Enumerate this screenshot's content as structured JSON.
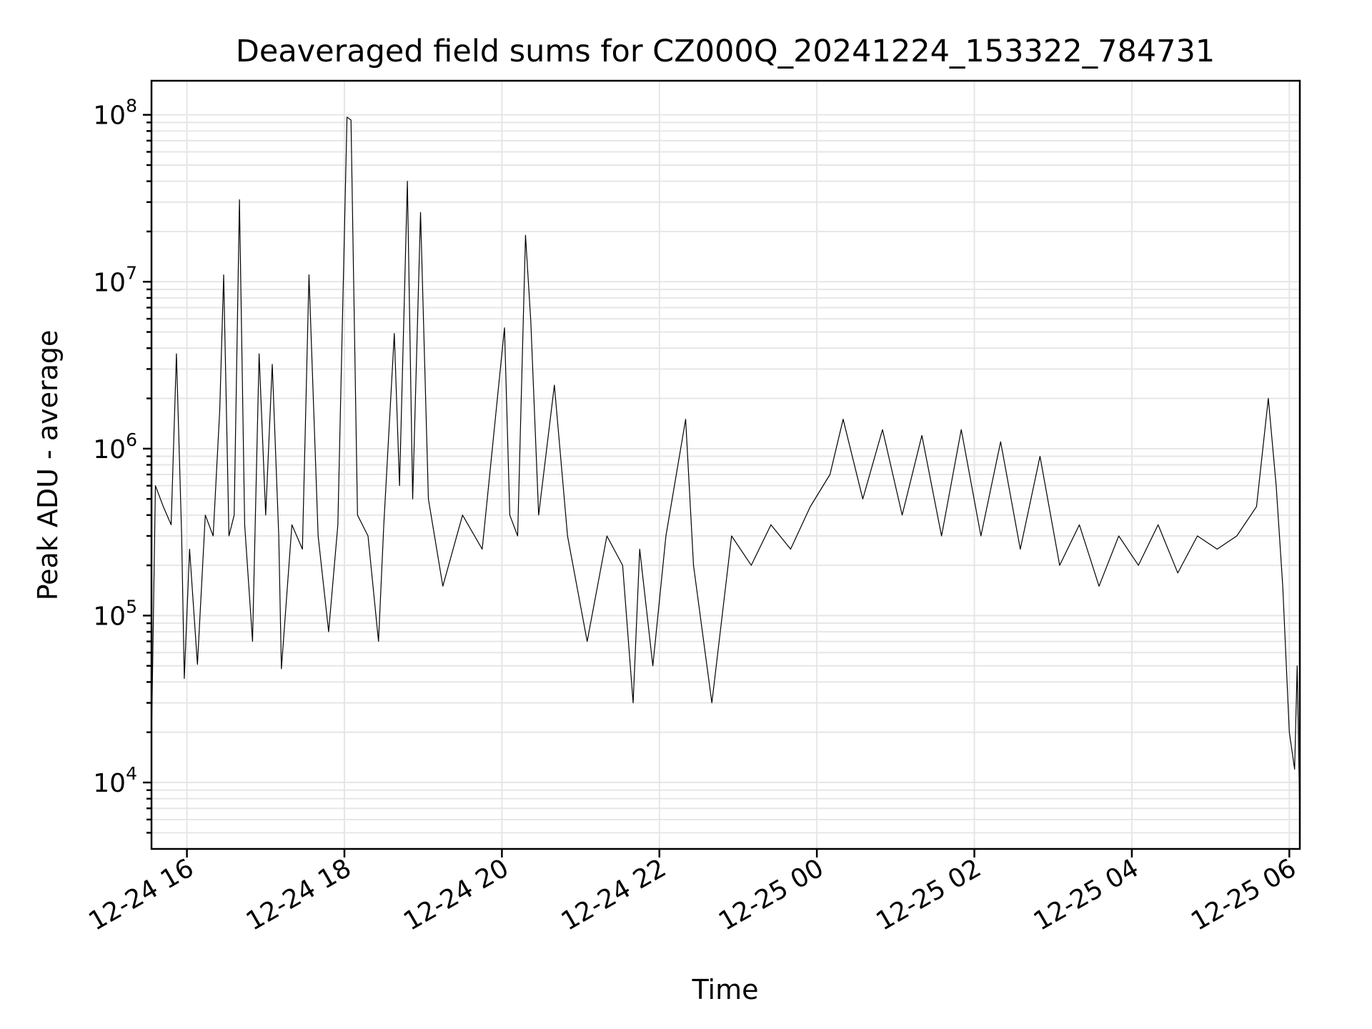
{
  "chart_data": {
    "type": "line",
    "title": "Deaveraged field sums for CZ000Q_20241224_153322_784731",
    "xlabel": "Time",
    "ylabel": "Peak ADU - average",
    "yscale": "log",
    "ylim": [
      4000,
      160000000
    ],
    "xlim": [
      "2024-12-24 15:33",
      "2024-12-25 06:08"
    ],
    "grid": true,
    "series_color": "#000000",
    "grid_color": "#e6e6e6",
    "x_ticks": [
      {
        "t": "2024-12-24 16:00",
        "label": "12-24 16"
      },
      {
        "t": "2024-12-24 18:00",
        "label": "12-24 18"
      },
      {
        "t": "2024-12-24 20:00",
        "label": "12-24 20"
      },
      {
        "t": "2024-12-24 22:00",
        "label": "12-24 22"
      },
      {
        "t": "2024-12-25 00:00",
        "label": "12-25 00"
      },
      {
        "t": "2024-12-25 02:00",
        "label": "12-25 02"
      },
      {
        "t": "2024-12-25 04:00",
        "label": "12-25 04"
      },
      {
        "t": "2024-12-25 06:00",
        "label": "12-25 06"
      }
    ],
    "y_ticks": [
      {
        "v": 10000,
        "base": "10",
        "exp": "4"
      },
      {
        "v": 100000,
        "base": "10",
        "exp": "5"
      },
      {
        "v": 1000000,
        "base": "10",
        "exp": "6"
      },
      {
        "v": 10000000,
        "base": "10",
        "exp": "7"
      },
      {
        "v": 100000000,
        "base": "10",
        "exp": "8"
      }
    ],
    "series": [
      {
        "points": [
          [
            "2024-12-24 15:33",
            18000
          ],
          [
            "2024-12-24 15:36",
            600000
          ],
          [
            "2024-12-24 15:42",
            450000
          ],
          [
            "2024-12-24 15:48",
            350000
          ],
          [
            "2024-12-24 15:52",
            3700000
          ],
          [
            "2024-12-24 15:56",
            300000
          ],
          [
            "2024-12-24 15:58",
            42000
          ],
          [
            "2024-12-24 16:02",
            250000
          ],
          [
            "2024-12-24 16:08",
            51000
          ],
          [
            "2024-12-24 16:14",
            400000
          ],
          [
            "2024-12-24 16:20",
            300000
          ],
          [
            "2024-12-24 16:25",
            1700000
          ],
          [
            "2024-12-24 16:28",
            11000000
          ],
          [
            "2024-12-24 16:32",
            300000
          ],
          [
            "2024-12-24 16:36",
            400000
          ],
          [
            "2024-12-24 16:40",
            31000000
          ],
          [
            "2024-12-24 16:44",
            350000
          ],
          [
            "2024-12-24 16:50",
            70000
          ],
          [
            "2024-12-24 16:55",
            3700000
          ],
          [
            "2024-12-24 17:00",
            400000
          ],
          [
            "2024-12-24 17:05",
            3200000
          ],
          [
            "2024-12-24 17:10",
            300000
          ],
          [
            "2024-12-24 17:12",
            48000
          ],
          [
            "2024-12-24 17:20",
            350000
          ],
          [
            "2024-12-24 17:28",
            250000
          ],
          [
            "2024-12-24 17:33",
            11000000
          ],
          [
            "2024-12-24 17:40",
            300000
          ],
          [
            "2024-12-24 17:48",
            80000
          ],
          [
            "2024-12-24 17:55",
            350000
          ],
          [
            "2024-12-24 18:02",
            97000000
          ],
          [
            "2024-12-24 18:05",
            93000000
          ],
          [
            "2024-12-24 18:10",
            400000
          ],
          [
            "2024-12-24 18:18",
            300000
          ],
          [
            "2024-12-24 18:26",
            70000
          ],
          [
            "2024-12-24 18:30",
            350000
          ],
          [
            "2024-12-24 18:38",
            4900000
          ],
          [
            "2024-12-24 18:42",
            600000
          ],
          [
            "2024-12-24 18:48",
            40000000
          ],
          [
            "2024-12-24 18:52",
            500000
          ],
          [
            "2024-12-24 18:58",
            26000000
          ],
          [
            "2024-12-24 19:04",
            500000
          ],
          [
            "2024-12-24 19:15",
            150000
          ],
          [
            "2024-12-24 19:30",
            400000
          ],
          [
            "2024-12-24 19:45",
            250000
          ],
          [
            "2024-12-24 20:02",
            5300000
          ],
          [
            "2024-12-24 20:06",
            400000
          ],
          [
            "2024-12-24 20:12",
            300000
          ],
          [
            "2024-12-24 20:18",
            19000000
          ],
          [
            "2024-12-24 20:22",
            5800000
          ],
          [
            "2024-12-24 20:28",
            400000
          ],
          [
            "2024-12-24 20:40",
            2400000
          ],
          [
            "2024-12-24 20:50",
            300000
          ],
          [
            "2024-12-24 21:05",
            70000
          ],
          [
            "2024-12-24 21:20",
            300000
          ],
          [
            "2024-12-24 21:32",
            200000
          ],
          [
            "2024-12-24 21:40",
            30000
          ],
          [
            "2024-12-24 21:45",
            250000
          ],
          [
            "2024-12-24 21:55",
            50000
          ],
          [
            "2024-12-24 22:05",
            300000
          ],
          [
            "2024-12-24 22:20",
            1500000
          ],
          [
            "2024-12-24 22:26",
            200000
          ],
          [
            "2024-12-24 22:40",
            30000
          ],
          [
            "2024-12-24 22:55",
            300000
          ],
          [
            "2024-12-24 23:10",
            200000
          ],
          [
            "2024-12-24 23:25",
            350000
          ],
          [
            "2024-12-24 23:40",
            250000
          ],
          [
            "2024-12-24 23:55",
            450000
          ],
          [
            "2024-12-25 00:10",
            700000
          ],
          [
            "2024-12-25 00:20",
            1500000
          ],
          [
            "2024-12-25 00:35",
            500000
          ],
          [
            "2024-12-25 00:50",
            1300000
          ],
          [
            "2024-12-25 01:05",
            400000
          ],
          [
            "2024-12-25 01:20",
            1200000
          ],
          [
            "2024-12-25 01:35",
            300000
          ],
          [
            "2024-12-25 01:50",
            1300000
          ],
          [
            "2024-12-25 02:05",
            300000
          ],
          [
            "2024-12-25 02:20",
            1100000
          ],
          [
            "2024-12-25 02:35",
            250000
          ],
          [
            "2024-12-25 02:50",
            900000
          ],
          [
            "2024-12-25 03:05",
            200000
          ],
          [
            "2024-12-25 03:20",
            350000
          ],
          [
            "2024-12-25 03:35",
            150000
          ],
          [
            "2024-12-25 03:50",
            300000
          ],
          [
            "2024-12-25 04:05",
            200000
          ],
          [
            "2024-12-25 04:20",
            350000
          ],
          [
            "2024-12-25 04:35",
            180000
          ],
          [
            "2024-12-25 04:50",
            300000
          ],
          [
            "2024-12-25 05:05",
            250000
          ],
          [
            "2024-12-25 05:20",
            300000
          ],
          [
            "2024-12-25 05:35",
            450000
          ],
          [
            "2024-12-25 05:44",
            2000000
          ],
          [
            "2024-12-25 05:50",
            600000
          ],
          [
            "2024-12-25 05:55",
            150000
          ],
          [
            "2024-12-25 06:00",
            20000
          ],
          [
            "2024-12-25 06:04",
            12000
          ],
          [
            "2024-12-25 06:06",
            50000
          ],
          [
            "2024-12-25 06:08",
            6000
          ]
        ]
      }
    ]
  }
}
